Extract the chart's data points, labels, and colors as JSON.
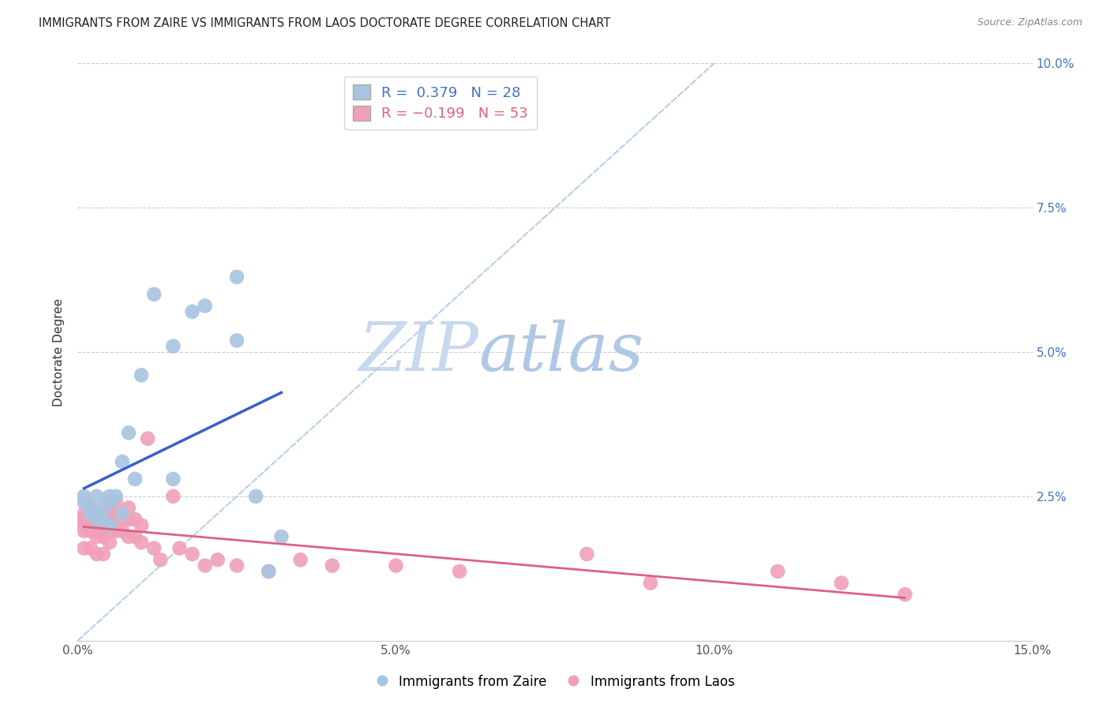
{
  "title": "IMMIGRANTS FROM ZAIRE VS IMMIGRANTS FROM LAOS DOCTORATE DEGREE CORRELATION CHART",
  "source": "Source: ZipAtlas.com",
  "ylabel": "Doctorate Degree",
  "xlim": [
    0.0,
    0.15
  ],
  "ylim": [
    0.0,
    0.1
  ],
  "zaire_R": 0.379,
  "zaire_N": 28,
  "laos_R": -0.199,
  "laos_N": 53,
  "zaire_color": "#a8c4e0",
  "laos_color": "#f0a0b8",
  "zaire_line_color": "#3a5fcd",
  "laos_line_color": "#e06080",
  "diagonal_color": "#b8cfe8",
  "background_color": "#ffffff",
  "zaire_x": [
    0.001,
    0.001,
    0.002,
    0.002,
    0.003,
    0.003,
    0.003,
    0.004,
    0.004,
    0.005,
    0.005,
    0.005,
    0.006,
    0.007,
    0.007,
    0.008,
    0.009,
    0.01,
    0.012,
    0.015,
    0.015,
    0.018,
    0.02,
    0.025,
    0.025,
    0.028,
    0.03,
    0.032
  ],
  "zaire_y": [
    0.024,
    0.025,
    0.023,
    0.022,
    0.025,
    0.022,
    0.021,
    0.023,
    0.021,
    0.025,
    0.024,
    0.02,
    0.025,
    0.031,
    0.022,
    0.036,
    0.028,
    0.046,
    0.06,
    0.028,
    0.051,
    0.057,
    0.058,
    0.063,
    0.052,
    0.025,
    0.012,
    0.018
  ],
  "laos_x": [
    0.001,
    0.001,
    0.001,
    0.001,
    0.001,
    0.002,
    0.002,
    0.002,
    0.002,
    0.003,
    0.003,
    0.003,
    0.003,
    0.003,
    0.004,
    0.004,
    0.004,
    0.004,
    0.005,
    0.005,
    0.005,
    0.005,
    0.006,
    0.006,
    0.006,
    0.007,
    0.007,
    0.008,
    0.008,
    0.008,
    0.009,
    0.009,
    0.01,
    0.01,
    0.011,
    0.012,
    0.013,
    0.015,
    0.016,
    0.018,
    0.02,
    0.022,
    0.025,
    0.03,
    0.035,
    0.04,
    0.05,
    0.06,
    0.08,
    0.09,
    0.11,
    0.12,
    0.13
  ],
  "laos_y": [
    0.022,
    0.021,
    0.02,
    0.019,
    0.016,
    0.023,
    0.021,
    0.019,
    0.016,
    0.022,
    0.02,
    0.019,
    0.018,
    0.015,
    0.022,
    0.02,
    0.018,
    0.015,
    0.023,
    0.021,
    0.019,
    0.017,
    0.024,
    0.022,
    0.019,
    0.021,
    0.019,
    0.023,
    0.021,
    0.018,
    0.021,
    0.018,
    0.02,
    0.017,
    0.035,
    0.016,
    0.014,
    0.025,
    0.016,
    0.015,
    0.013,
    0.014,
    0.013,
    0.012,
    0.014,
    0.013,
    0.013,
    0.012,
    0.015,
    0.01,
    0.012,
    0.01,
    0.008
  ],
  "title_fontsize": 10.5,
  "axis_label_fontsize": 11,
  "tick_fontsize": 11,
  "legend_fontsize": 13,
  "watermark_zip": "ZIP",
  "watermark_atlas": "atlas",
  "watermark_color_zip": "#c8d8ee",
  "watermark_color_atlas": "#b0c8e4"
}
